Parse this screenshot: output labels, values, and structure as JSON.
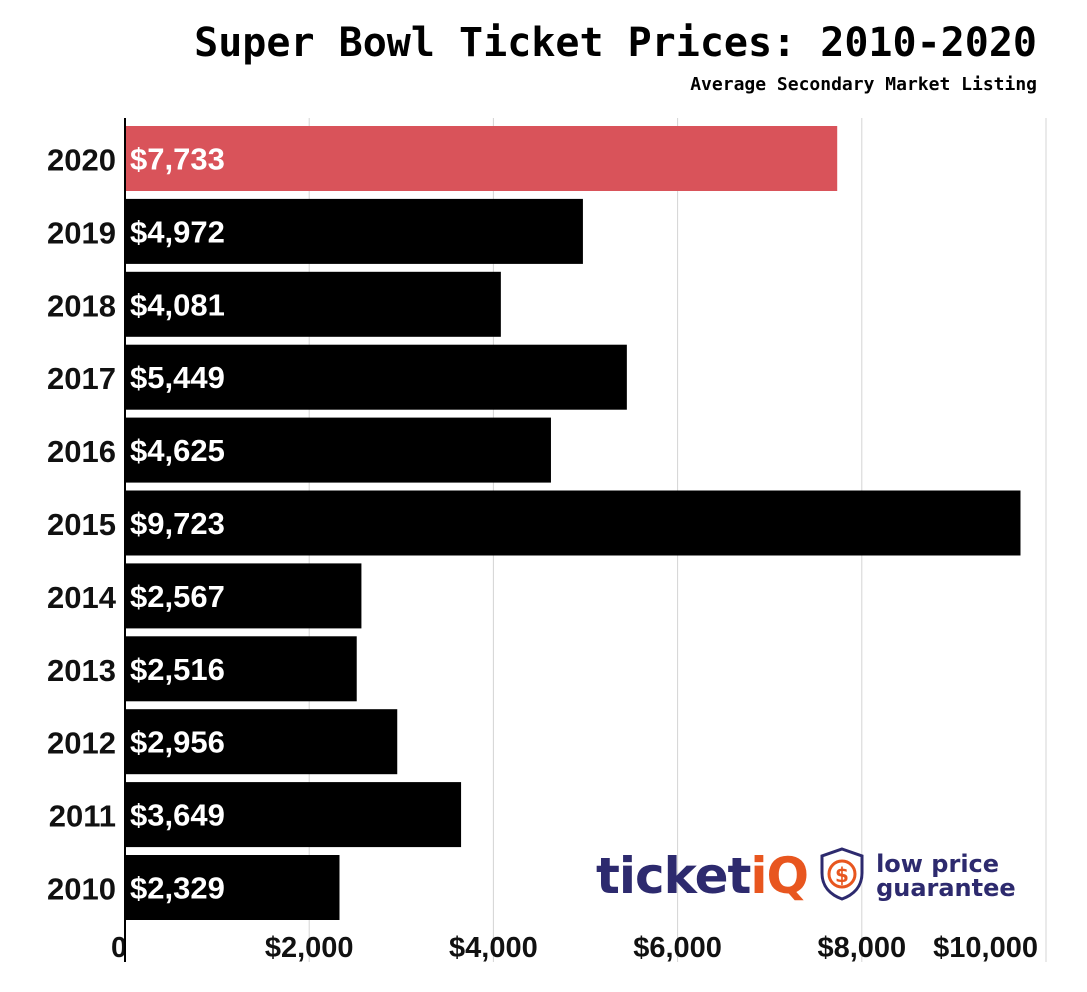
{
  "chart_data": {
    "type": "bar",
    "orientation": "horizontal",
    "title": "Super Bowl Ticket Prices: 2010-2020",
    "subtitle": "Average Secondary Market Listing",
    "categories": [
      "2020",
      "2019",
      "2018",
      "2017",
      "2016",
      "2015",
      "2014",
      "2013",
      "2012",
      "2011",
      "2010"
    ],
    "values": [
      7733,
      4972,
      4081,
      5449,
      4625,
      9723,
      2567,
      2516,
      2956,
      3649,
      2329
    ],
    "data_labels": [
      "$7,733",
      "$4,972",
      "$4,081",
      "$5,449",
      "$4,625",
      "$9,723",
      "$2,567",
      "$2,516",
      "$2,956",
      "$3,649",
      "$2,329"
    ],
    "xlim": [
      0,
      10000
    ],
    "xticks": [
      0,
      2000,
      4000,
      6000,
      8000,
      10000
    ],
    "xtick_labels": [
      "0",
      "$2,000",
      "$4,000",
      "$6,000",
      "$8,000",
      "$10,000"
    ],
    "highlight_color": "#d9535a",
    "bar_color": "#000000",
    "grid": true
  },
  "logo": {
    "word_main": "ticket",
    "word_accent": "iQ",
    "tagline_line1": "low price",
    "tagline_line2": "guarantee",
    "badge_symbol": "$",
    "brand_color": "#2d2a6e",
    "accent_color": "#e8561f"
  }
}
